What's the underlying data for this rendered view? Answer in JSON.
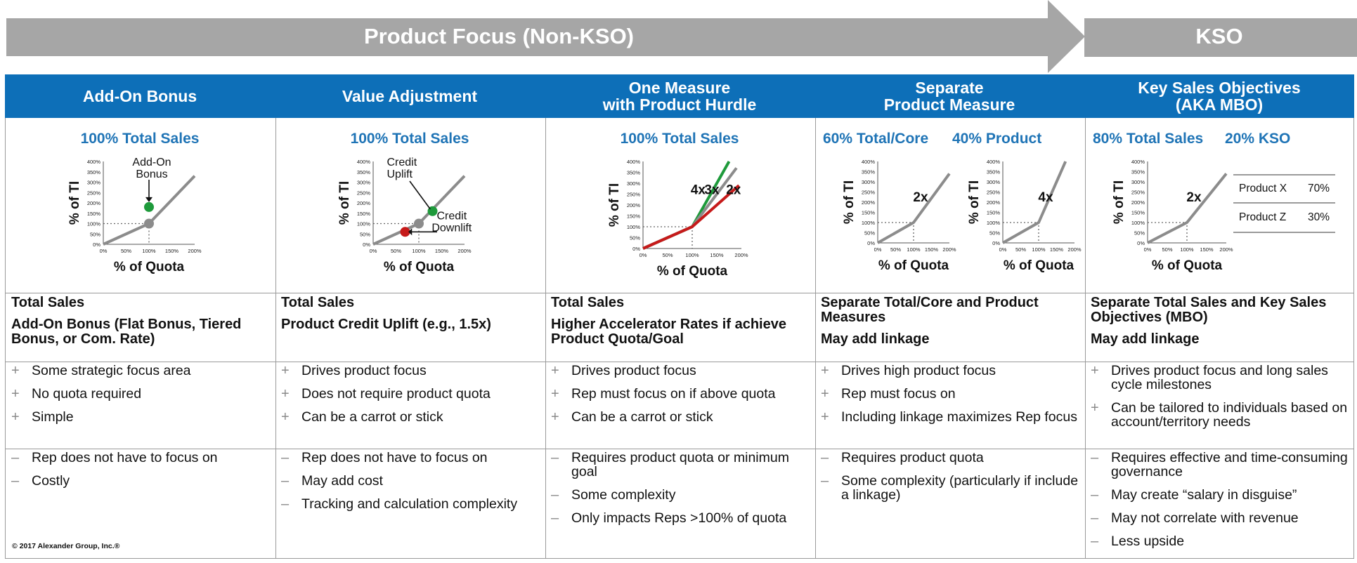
{
  "banner": {
    "left_label": "Product Focus (Non-KSO)",
    "right_label": "KSO",
    "color": "#a6a6a6"
  },
  "colors": {
    "header_blue": "#0d6fb8",
    "title_blue": "#1f74b6",
    "line_gray": "#8c8c8c",
    "green": "#1e9a3b",
    "red": "#c61a1a"
  },
  "columns": [
    {
      "header": "Add-On Bonus",
      "chart_titles": [
        "100% Total Sales"
      ],
      "desc": [
        "Total Sales",
        "Add-On Bonus (Flat Bonus, Tiered Bonus, or Com. Rate)"
      ],
      "pros": [
        "Some strategic focus area",
        "No quota required",
        "Simple"
      ],
      "cons": [
        "Rep does not have to focus on",
        "Costly"
      ]
    },
    {
      "header": "Value Adjustment",
      "chart_titles": [
        "100% Total Sales"
      ],
      "desc": [
        "Total Sales",
        "Product Credit Uplift (e.g., 1.5x)"
      ],
      "pros": [
        "Drives product focus",
        "Does not require product quota",
        "Can be a carrot or stick"
      ],
      "cons": [
        "Rep does not have to focus on",
        "May add cost",
        "Tracking and calculation complexity"
      ]
    },
    {
      "header": "One Measure\nwith Product Hurdle",
      "chart_titles": [
        "100% Total Sales"
      ],
      "desc": [
        "Total Sales",
        "Higher Accelerator Rates if achieve Product Quota/Goal"
      ],
      "pros": [
        "Drives product focus",
        "Rep must focus on if above quota",
        "Can be a carrot or stick"
      ],
      "cons": [
        "Requires product quota or minimum goal",
        "Some complexity",
        "Only impacts Reps >100% of quota"
      ]
    },
    {
      "header": "Separate\nProduct Measure",
      "chart_titles": [
        "60% Total/Core",
        "40% Product"
      ],
      "desc": [
        "Separate Total/Core and Product Measures",
        "May add linkage"
      ],
      "pros": [
        "Drives high product focus",
        "Rep must focus on",
        "Including linkage maximizes Rep focus"
      ],
      "cons": [
        "Requires product quota",
        "Some complexity (particularly if include a linkage)"
      ]
    },
    {
      "header": "Key Sales Objectives\n(AKA MBO)",
      "chart_titles": [
        "80% Total Sales",
        "20% KSO"
      ],
      "desc": [
        "Separate Total Sales and Key Sales Objectives (MBO)",
        "May add linkage"
      ],
      "pros": [
        "Drives product focus and long sales cycle milestones",
        "Can be tailored to individuals based on account/territory needs"
      ],
      "cons": [
        "Requires effective and time-consuming governance",
        "May create “salary in disguise”",
        "May not correlate with revenue",
        "Less upside"
      ]
    }
  ],
  "chart_data": [
    {
      "type": "line",
      "id": "add-on-bonus",
      "xlabel": "% of Quota",
      "ylabel": "% of TI",
      "x_ticks": [
        "0%",
        "50%",
        "100%",
        "150%",
        "200%"
      ],
      "y_ticks": [
        "0%",
        "50%",
        "100%",
        "150%",
        "200%",
        "250%",
        "300%",
        "350%",
        "400%"
      ],
      "xlim": [
        0,
        200
      ],
      "ylim": [
        0,
        400
      ],
      "series": [
        {
          "color": "#8c8c8c",
          "x": [
            0,
            100,
            200
          ],
          "y": [
            0,
            100,
            330
          ]
        }
      ],
      "points": [
        {
          "x": 100,
          "y": 100,
          "color": "#8c8c8c"
        },
        {
          "x": 100,
          "y": 180,
          "color": "#1e9a3b"
        }
      ],
      "annotations": [
        "Add-On\nBonus"
      ]
    },
    {
      "type": "line",
      "id": "value-adjustment",
      "xlabel": "% of Quota",
      "ylabel": "% of TI",
      "x_ticks": [
        "0%",
        "50%",
        "100%",
        "150%",
        "200%"
      ],
      "y_ticks": [
        "0%",
        "50%",
        "100%",
        "150%",
        "200%",
        "250%",
        "300%",
        "350%",
        "400%"
      ],
      "xlim": [
        0,
        200
      ],
      "ylim": [
        0,
        400
      ],
      "series": [
        {
          "color": "#8c8c8c",
          "x": [
            0,
            100,
            200
          ],
          "y": [
            0,
            100,
            330
          ]
        }
      ],
      "points": [
        {
          "x": 100,
          "y": 100,
          "color": "#8c8c8c"
        },
        {
          "x": 130,
          "y": 160,
          "color": "#1e9a3b"
        },
        {
          "x": 70,
          "y": 60,
          "color": "#c61a1a"
        }
      ],
      "annotations": [
        "Credit\nUplift",
        "Credit\nDownlift"
      ]
    },
    {
      "type": "line",
      "id": "one-measure-hurdle",
      "xlabel": "% of Quota",
      "ylabel": "% of TI",
      "x_ticks": [
        "0%",
        "50%",
        "100%",
        "150%",
        "200%"
      ],
      "y_ticks": [
        "0%",
        "50%",
        "100%",
        "150%",
        "200%",
        "250%",
        "300%",
        "350%",
        "400%"
      ],
      "xlim": [
        0,
        200
      ],
      "ylim": [
        0,
        400
      ],
      "series": [
        {
          "name": "4x",
          "color": "#1e9a3b",
          "x": [
            0,
            100,
            175
          ],
          "y": [
            0,
            100,
            400
          ]
        },
        {
          "name": "3x",
          "color": "#8c8c8c",
          "x": [
            0,
            100,
            190
          ],
          "y": [
            0,
            100,
            370
          ]
        },
        {
          "name": "2x",
          "color": "#c61a1a",
          "x": [
            0,
            100,
            195
          ],
          "y": [
            0,
            100,
            290
          ]
        }
      ],
      "points": []
    },
    {
      "type": "line",
      "id": "separate-core",
      "xlabel": "% of Quota",
      "ylabel": "% of TI",
      "x_ticks": [
        "0%",
        "50%",
        "100%",
        "150%",
        "200%"
      ],
      "y_ticks": [
        "0%",
        "50%",
        "100%",
        "150%",
        "200%",
        "250%",
        "300%",
        "350%",
        "400%"
      ],
      "xlim": [
        0,
        200
      ],
      "ylim": [
        0,
        400
      ],
      "series": [
        {
          "name": "2x",
          "color": "#8c8c8c",
          "x": [
            0,
            100,
            200
          ],
          "y": [
            0,
            100,
            340
          ]
        }
      ],
      "points": []
    },
    {
      "type": "line",
      "id": "separate-product",
      "xlabel": "% of Quota",
      "ylabel": "% of TI",
      "x_ticks": [
        "0%",
        "50%",
        "100%",
        "150%",
        "200%"
      ],
      "y_ticks": [
        "0%",
        "50%",
        "100%",
        "150%",
        "200%",
        "250%",
        "300%",
        "350%",
        "400%"
      ],
      "xlim": [
        0,
        200
      ],
      "ylim": [
        0,
        400
      ],
      "series": [
        {
          "name": "4x",
          "color": "#8c8c8c",
          "x": [
            0,
            100,
            175
          ],
          "y": [
            0,
            100,
            400
          ]
        }
      ],
      "points": []
    },
    {
      "type": "line",
      "id": "kso-total",
      "xlabel": "% of Quota",
      "ylabel": "% of TI",
      "x_ticks": [
        "0%",
        "50%",
        "100%",
        "150%",
        "200%"
      ],
      "y_ticks": [
        "0%",
        "50%",
        "100%",
        "150%",
        "200%",
        "250%",
        "300%",
        "350%",
        "400%"
      ],
      "xlim": [
        0,
        200
      ],
      "ylim": [
        0,
        400
      ],
      "series": [
        {
          "name": "2x",
          "color": "#8c8c8c",
          "x": [
            0,
            100,
            200
          ],
          "y": [
            0,
            100,
            340
          ]
        }
      ],
      "points": []
    },
    {
      "type": "table",
      "id": "kso-table",
      "rows": [
        [
          "Product X",
          "70%"
        ],
        [
          "Product Z",
          "30%"
        ]
      ]
    }
  ],
  "copyright": "© 2017 Alexander Group, Inc.®"
}
